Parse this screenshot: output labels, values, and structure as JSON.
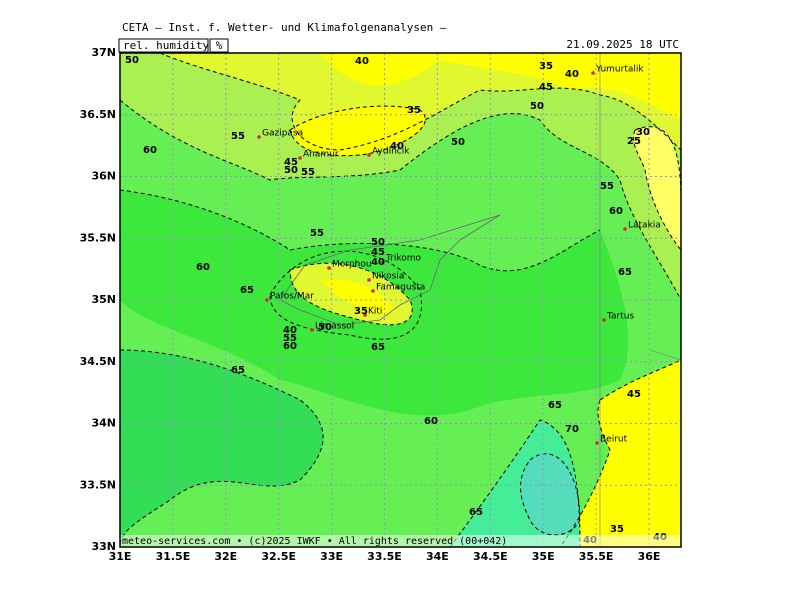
{
  "header": {
    "title": "CETA — Inst. f. Wetter- und Klimafolgenanalysen —",
    "variable": "rel. humidity",
    "unit": "%",
    "datetime": "21.09.2025 18 UTC"
  },
  "axes": {
    "x_labels": [
      "31E",
      "31.5E",
      "32E",
      "32.5E",
      "33E",
      "33.5E",
      "34E",
      "34.5E",
      "35E",
      "35.5E",
      "36E"
    ],
    "y_labels": [
      "37N",
      "36.5N",
      "36N",
      "35.5N",
      "35N",
      "34.5N",
      "34N",
      "33.5N",
      "33N"
    ]
  },
  "cities": [
    "Gazipasa",
    "Anamur",
    "Aydincik",
    "Yumurtalik",
    "Latakia",
    "Tartus",
    "Beirut",
    "Morphou",
    "Nikosia",
    "Famagusta",
    "Trikomo",
    "Pafos/Mar",
    "Limassol",
    "Kiti"
  ],
  "contour_labels": [
    50,
    40,
    35,
    40,
    45,
    35,
    50,
    55,
    60,
    40,
    50,
    45,
    50,
    55,
    55,
    30,
    25,
    55,
    60,
    60,
    50,
    45,
    40,
    65,
    35,
    65,
    40,
    50,
    55,
    60,
    65,
    65,
    60,
    65,
    45,
    70,
    65,
    35,
    40,
    40
  ],
  "footer": "meteo-services.com • (c)2025 IWKF • All rights reserved (00+042)"
}
